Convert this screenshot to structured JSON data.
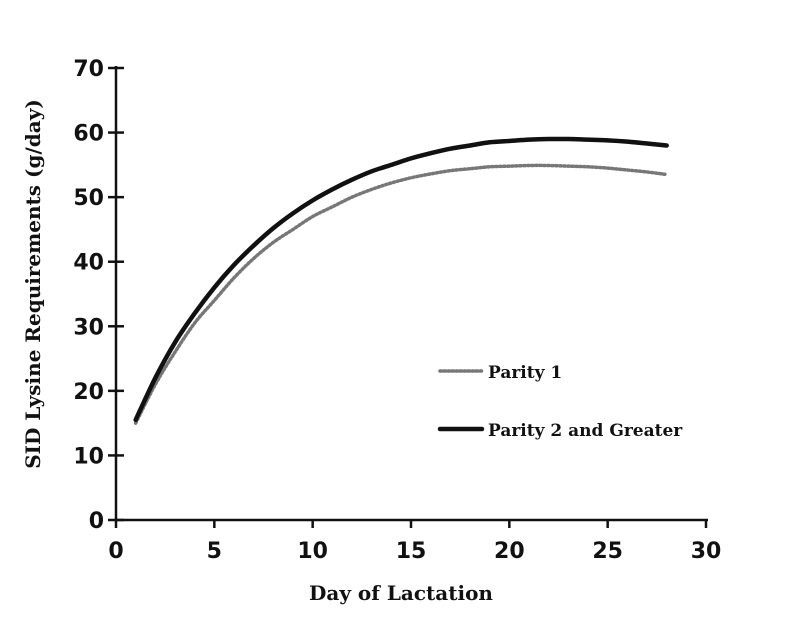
{
  "chart_data": {
    "type": "line",
    "title": "",
    "xlabel": "Day of Lactation",
    "ylabel": "SID Lysine Requirements (g/day)",
    "xlim": [
      0,
      30
    ],
    "ylim": [
      0,
      70
    ],
    "xticks": [
      "0",
      "5",
      "10",
      "15",
      "20",
      "25",
      "30"
    ],
    "yticks": [
      "0",
      "10",
      "20",
      "30",
      "40",
      "50",
      "60",
      "70"
    ],
    "grid": false,
    "legend_position": "center-right",
    "series": [
      {
        "name": "Parity 1",
        "style": "dotted",
        "color": "#777777",
        "x": [
          1,
          2,
          3,
          4,
          5,
          6,
          7,
          8,
          9,
          10,
          11,
          12,
          13,
          14,
          15,
          16,
          17,
          18,
          19,
          20,
          21,
          22,
          23,
          24,
          25,
          26,
          27,
          28
        ],
        "y": [
          15,
          21,
          26,
          30.5,
          34,
          37.5,
          40.5,
          43,
          45,
          47,
          48.5,
          50,
          51.2,
          52.2,
          53,
          53.6,
          54.1,
          54.4,
          54.7,
          54.8,
          54.9,
          54.9,
          54.8,
          54.7,
          54.5,
          54.2,
          53.9,
          53.5
        ]
      },
      {
        "name": "Parity 2 and Greater",
        "style": "solid",
        "color": "#111111",
        "x": [
          1,
          2,
          3,
          4,
          5,
          6,
          7,
          8,
          9,
          10,
          11,
          12,
          13,
          14,
          15,
          16,
          17,
          18,
          19,
          20,
          21,
          22,
          23,
          24,
          25,
          26,
          27,
          28
        ],
        "y": [
          15.5,
          22,
          27.5,
          32,
          36,
          39.5,
          42.5,
          45.2,
          47.5,
          49.5,
          51.2,
          52.7,
          54,
          55,
          56,
          56.8,
          57.5,
          58,
          58.5,
          58.7,
          58.9,
          59,
          59,
          58.9,
          58.8,
          58.6,
          58.3,
          58
        ]
      }
    ]
  }
}
